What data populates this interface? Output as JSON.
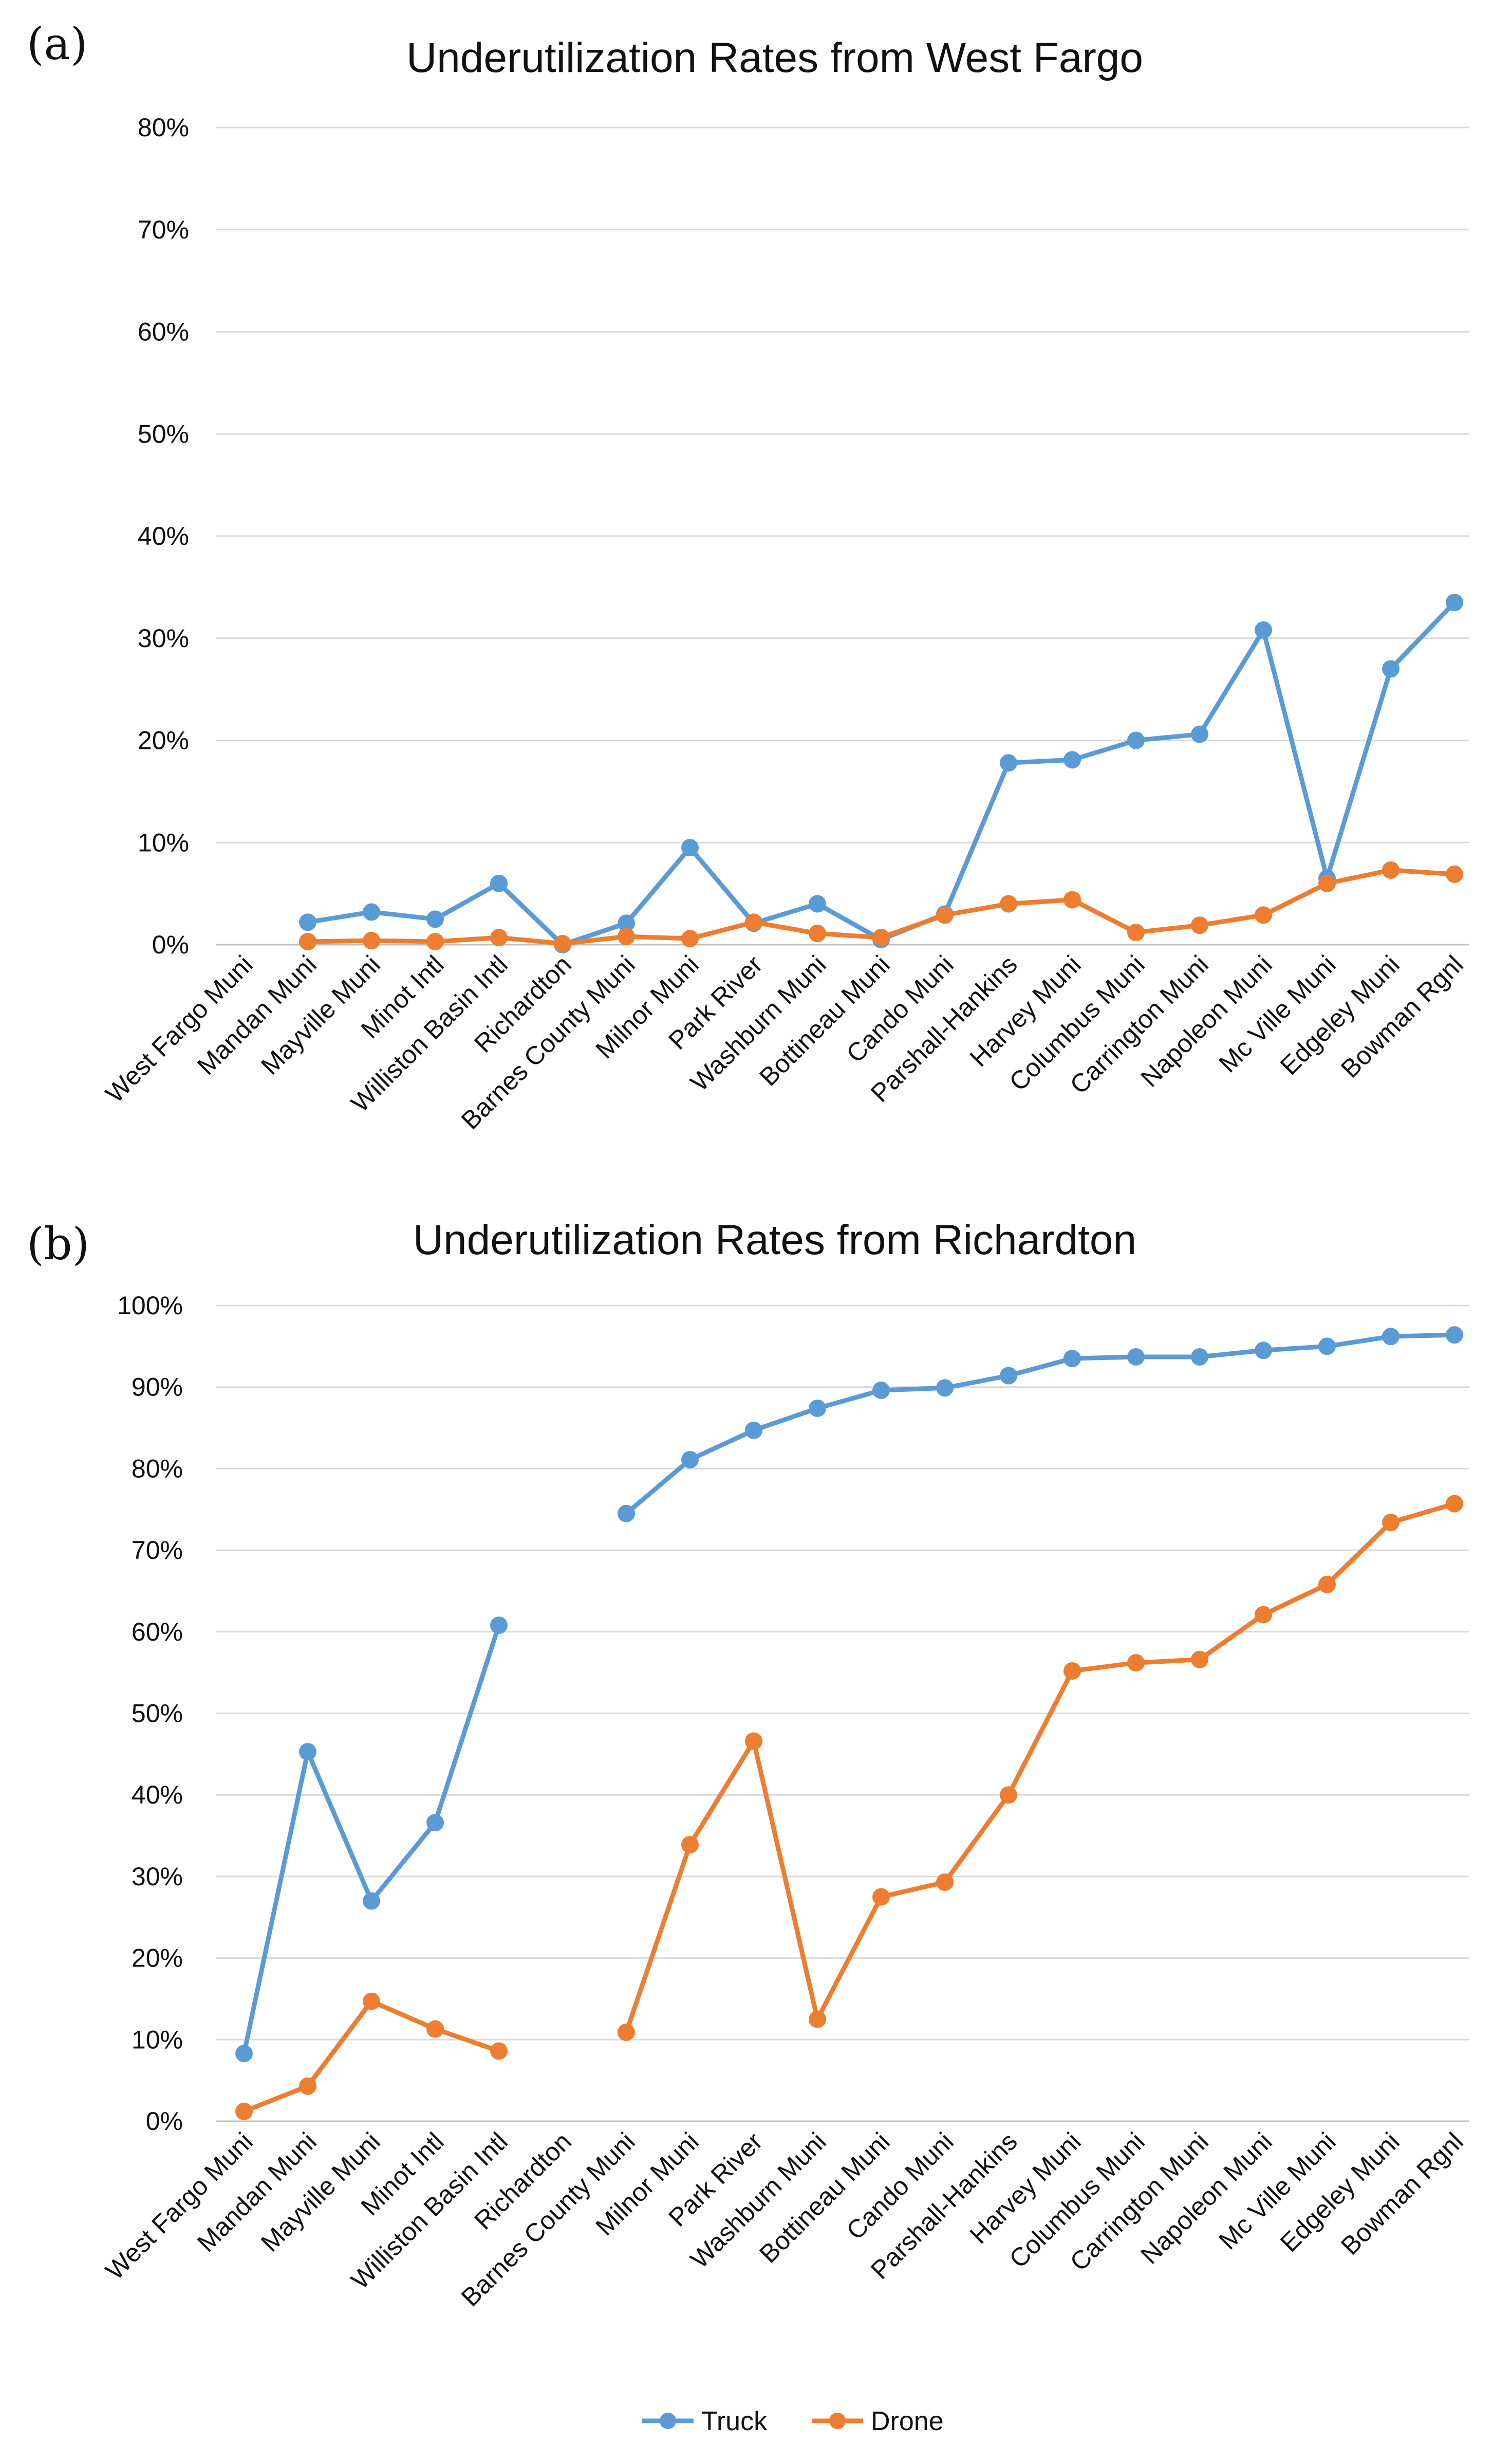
{
  "chart_data": [
    {
      "panel": "(a)",
      "type": "line",
      "title": "Underutilization Rates from West Fargo",
      "xlabel": "",
      "ylabel": "",
      "ylim": [
        0,
        80
      ],
      "y_ticks": [
        "0%",
        "10%",
        "20%",
        "30%",
        "40%",
        "50%",
        "60%",
        "70%",
        "80%"
      ],
      "grid": true,
      "categories": [
        "West Fargo Muni",
        "Mandan Muni",
        "Mayville Muni",
        "Minot Intl",
        "Williston Basin Intl",
        "Richardton",
        "Barnes County Muni",
        "Milnor Muni",
        "Park River",
        "Washburn Muni",
        "Bottineau Muni",
        "Cando Muni",
        "Parshall-Hankins",
        "Harvey Muni",
        "Columbus Muni",
        "Carrington Muni",
        "Napoleon Muni",
        "Mc Ville Muni",
        "Edgeley Muni",
        "Bowman Rgnl"
      ],
      "series": [
        {
          "name": "Truck",
          "color": "#5B9BD5",
          "values": [
            null,
            2.2,
            3.2,
            2.5,
            6.0,
            0.0,
            2.1,
            9.5,
            2.1,
            4.0,
            0.5,
            3.0,
            17.8,
            18.1,
            20.0,
            20.6,
            30.8,
            6.5,
            27.0,
            33.5
          ]
        },
        {
          "name": "Drone",
          "color": "#ED7D31",
          "values": [
            null,
            0.3,
            0.4,
            0.3,
            0.7,
            0.1,
            0.8,
            0.6,
            2.2,
            1.1,
            0.7,
            2.9,
            4.0,
            4.4,
            1.2,
            1.9,
            2.9,
            6.0,
            7.3,
            6.9
          ]
        }
      ]
    },
    {
      "panel": "(b)",
      "type": "line",
      "title": "Underutilization Rates from Richardton",
      "xlabel": "",
      "ylabel": "",
      "ylim": [
        0,
        100
      ],
      "y_ticks": [
        "0%",
        "10%",
        "20%",
        "30%",
        "40%",
        "50%",
        "60%",
        "70%",
        "80%",
        "90%",
        "100%"
      ],
      "grid": true,
      "categories": [
        "West Fargo Muni",
        "Mandan Muni",
        "Mayville Muni",
        "Minot Intl",
        "Williston Basin Intl",
        "Richardton",
        "Barnes County Muni",
        "Milnor Muni",
        "Park River",
        "Washburn Muni",
        "Bottineau Muni",
        "Cando Muni",
        "Parshall-Hankins",
        "Harvey Muni",
        "Columbus Muni",
        "Carrington Muni",
        "Napoleon Muni",
        "Mc Ville Muni",
        "Edgeley Muni",
        "Bowman Rgnl"
      ],
      "series": [
        {
          "name": "Truck",
          "color": "#5B9BD5",
          "values": [
            8.3,
            45.3,
            27.0,
            36.6,
            60.8,
            null,
            74.5,
            81.1,
            84.7,
            87.4,
            89.6,
            89.9,
            91.4,
            93.5,
            93.7,
            93.7,
            94.5,
            95.0,
            96.2,
            96.4
          ]
        },
        {
          "name": "Drone",
          "color": "#ED7D31",
          "values": [
            1.2,
            4.3,
            14.7,
            11.3,
            8.6,
            null,
            10.9,
            33.9,
            46.6,
            12.5,
            27.5,
            29.3,
            40.0,
            55.2,
            56.2,
            56.6,
            62.1,
            65.8,
            73.4,
            75.7
          ]
        }
      ]
    }
  ],
  "legend": {
    "placement": "bottom-center",
    "items": [
      {
        "label": "Truck",
        "color": "#5B9BD5"
      },
      {
        "label": "Drone",
        "color": "#ED7D31"
      }
    ]
  }
}
